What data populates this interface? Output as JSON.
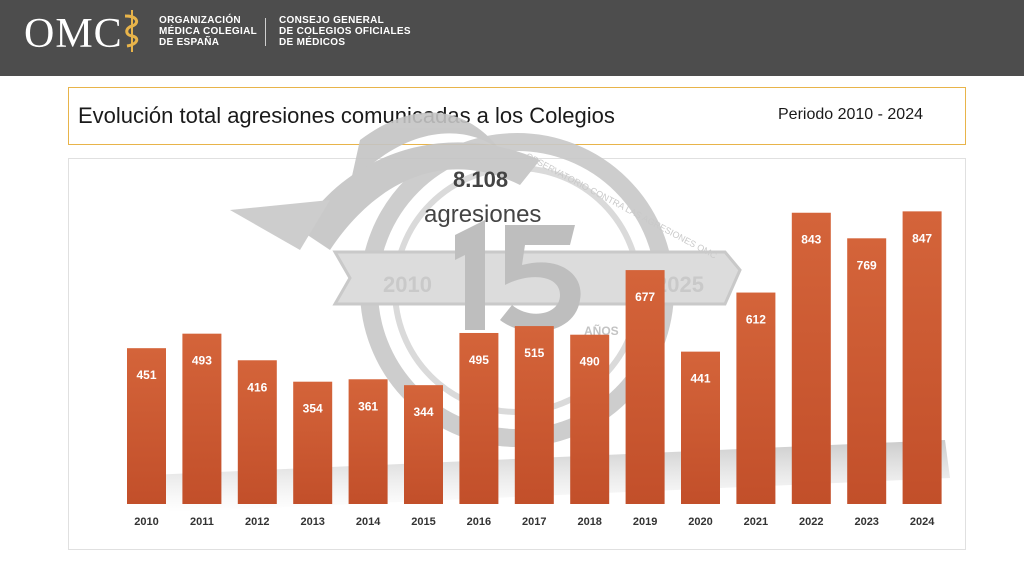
{
  "header": {
    "logo": "OMC",
    "org_line1": "ORGANIZACIÓN",
    "org_line2": "MÉDICA COLEGIAL",
    "org_line3": "DE ESPAÑA",
    "council_line1": "CONSEJO GENERAL",
    "council_line2": "DE COLEGIOS OFICIALES",
    "council_line3": "DE MÉDICOS",
    "background_color": "#4d4d4d"
  },
  "title": "Evolución total agresiones comunicadas a los Colegios",
  "period": "Periodo 2010 - 2024",
  "total": {
    "value": "8.108",
    "label": "agresiones"
  },
  "watermark": {
    "year_start": "2010",
    "year_end": "2025",
    "number": "15",
    "text": "AÑOS",
    "arc_text": "OBSERVATORIO CONTRA LAS AGRESIONES OMC"
  },
  "chart_data": {
    "type": "bar",
    "categories": [
      "2010",
      "2011",
      "2012",
      "2013",
      "2014",
      "2015",
      "2016",
      "2017",
      "2018",
      "2019",
      "2020",
      "2021",
      "2022",
      "2023",
      "2024"
    ],
    "values": [
      451,
      493,
      416,
      354,
      361,
      344,
      495,
      515,
      490,
      677,
      441,
      612,
      843,
      769,
      847
    ],
    "data_labels": true,
    "bar_color": "#cc5a32",
    "accent_color": "#e8b44a",
    "grid": false
  }
}
